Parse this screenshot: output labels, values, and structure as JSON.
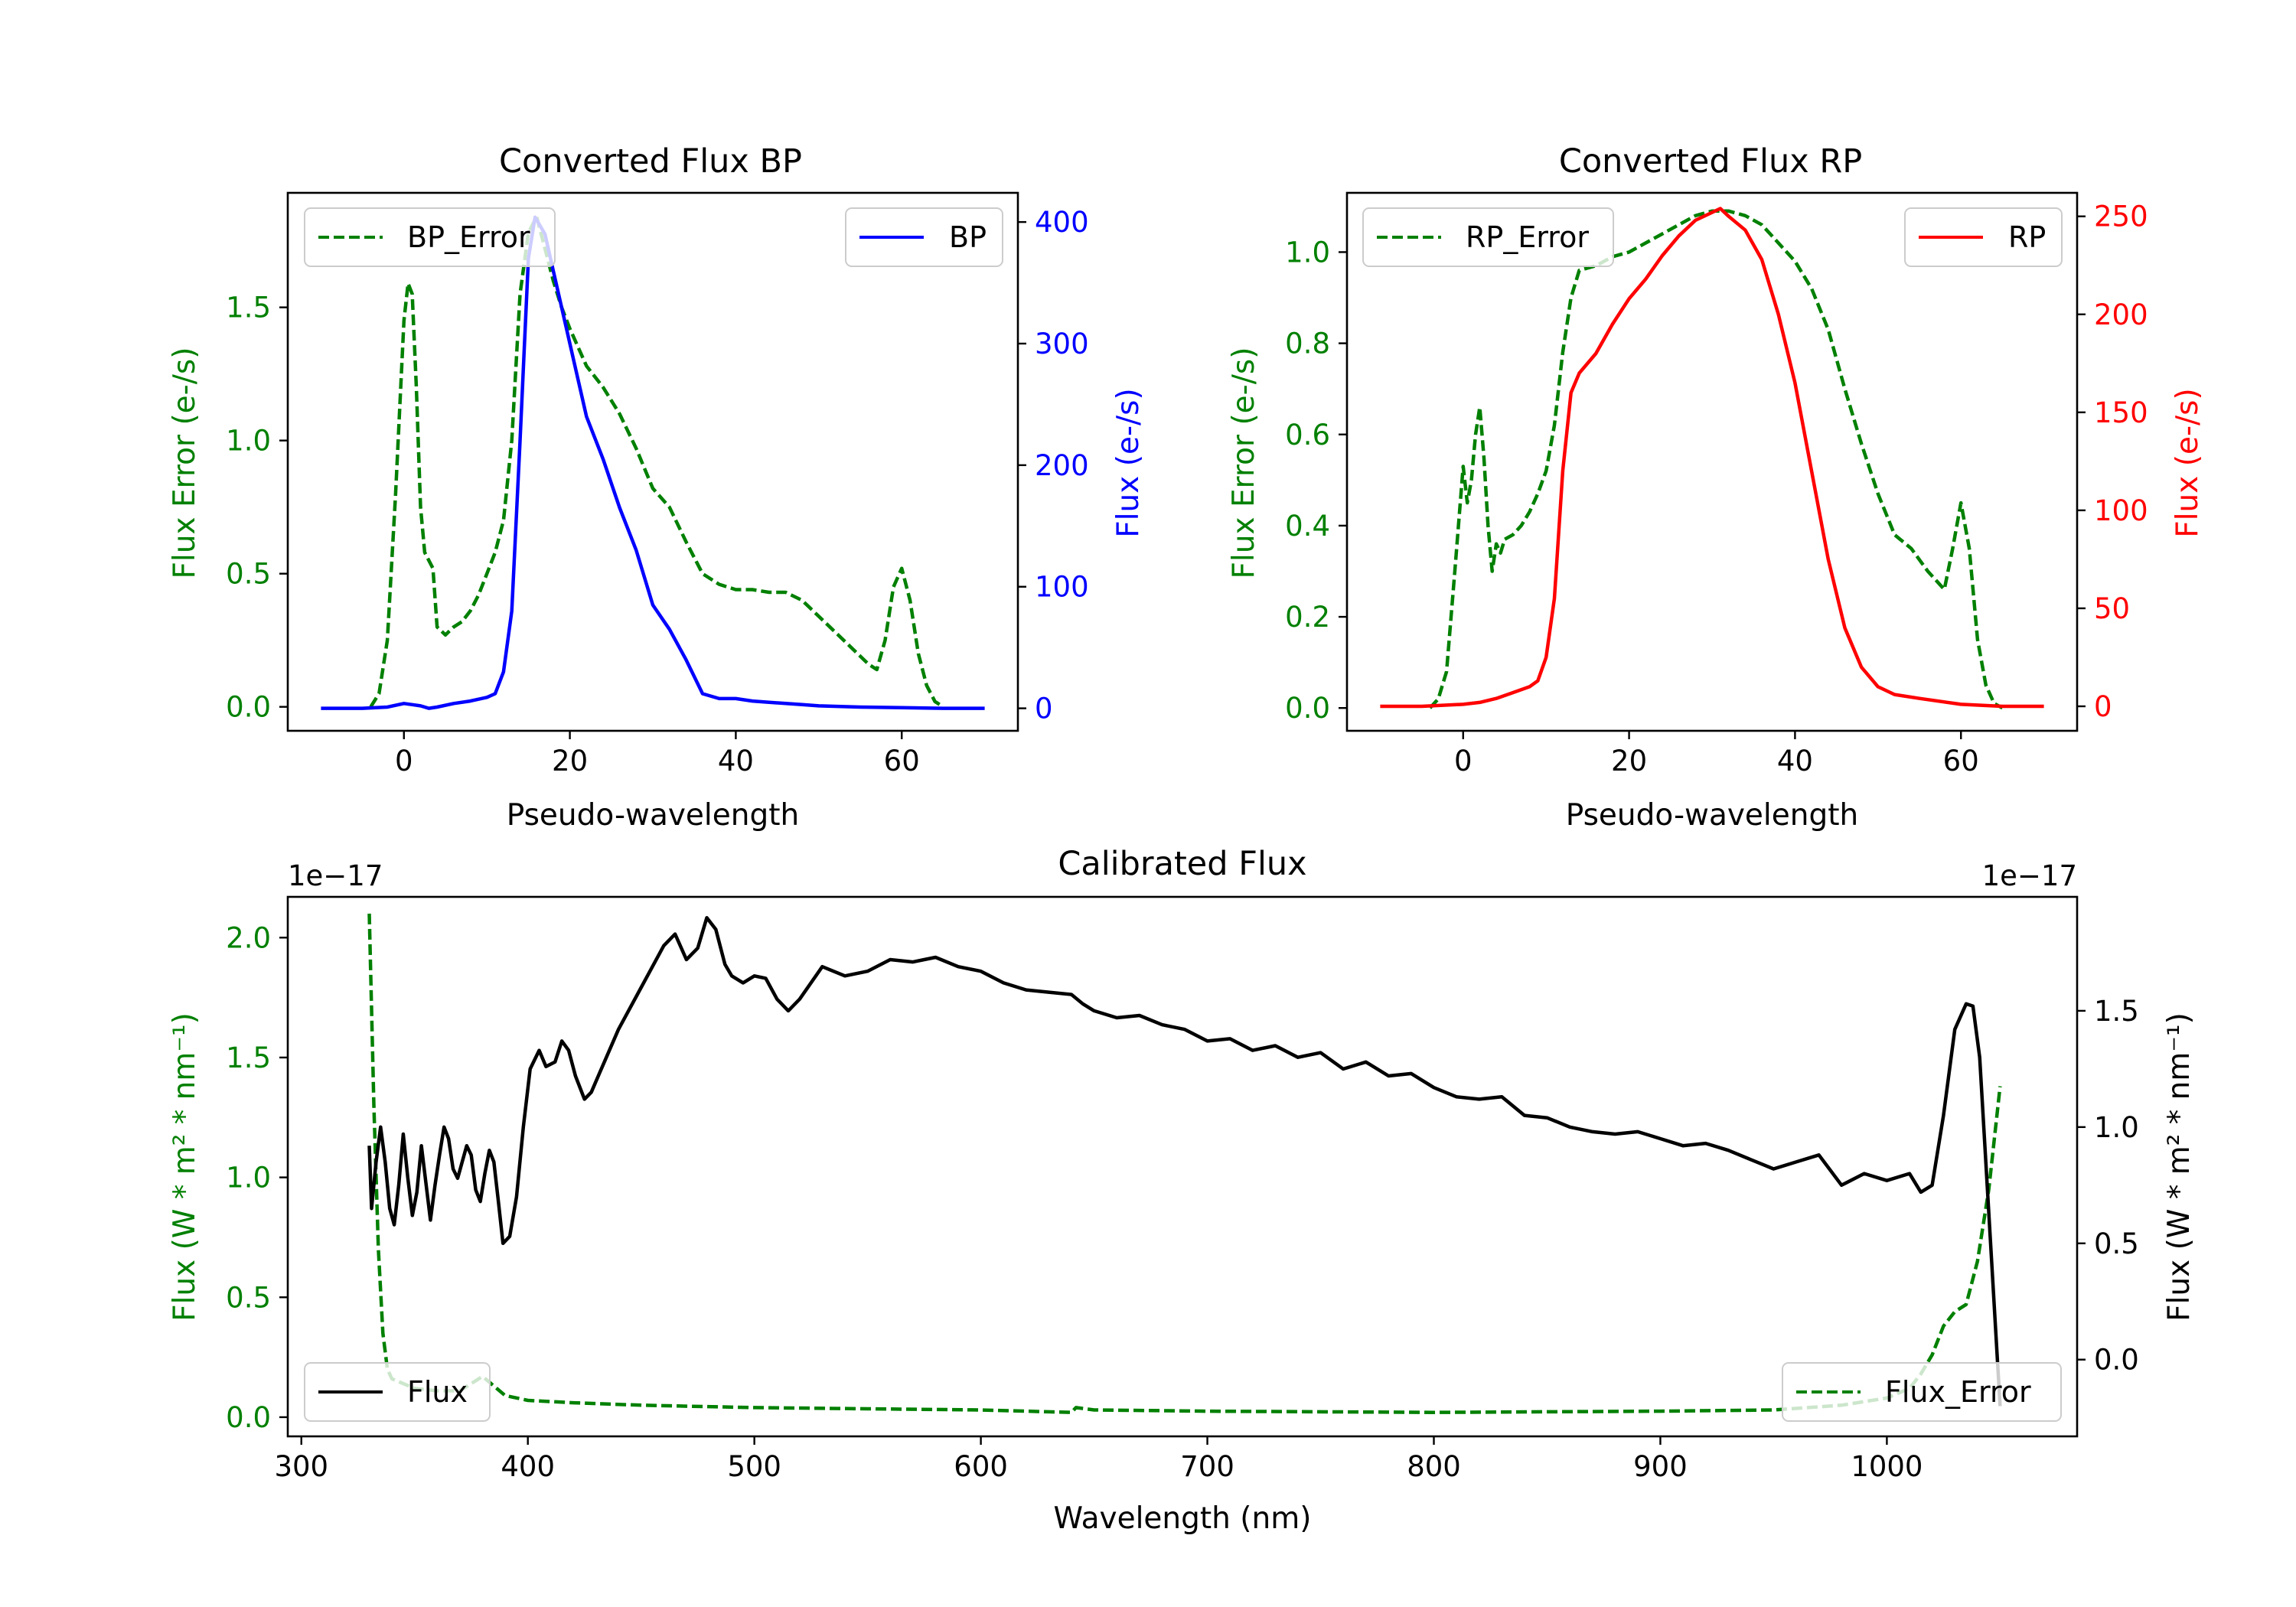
{
  "chart_data": [
    {
      "type": "line",
      "title": "Converted Flux BP",
      "xlabel": "Pseudo-wavelength",
      "ylabel_left": "Flux Error (e-/s)",
      "ylabel_right": "Flux (e-/s)",
      "xlim": [
        -14,
        74
      ],
      "ylim_left": [
        -0.09,
        1.93
      ],
      "ylim_right": [
        -18.5,
        424
      ],
      "xticks": [
        "0",
        "20",
        "40",
        "60"
      ],
      "yticks_left": [
        "0.0",
        "0.5",
        "1.0",
        "1.5"
      ],
      "yticks_right": [
        "0",
        "100",
        "200",
        "300",
        "400"
      ],
      "left_color": "#008000",
      "right_color": "#0000ff",
      "series": [
        {
          "name": "BP_Error",
          "axis": "left",
          "style": "dashed",
          "color": "#008000",
          "x": [
            -4,
            -3,
            -2,
            -1,
            0,
            0.5,
            1,
            1.5,
            2,
            2.5,
            3,
            3.5,
            4,
            5,
            6,
            7,
            8,
            9,
            10,
            11,
            12,
            13,
            14,
            15,
            16,
            17,
            18,
            19,
            20,
            22,
            24,
            26,
            28,
            30,
            32,
            34,
            36,
            38,
            40,
            42,
            44,
            46,
            48,
            50,
            52,
            54,
            56,
            57,
            58,
            59,
            60,
            61,
            62,
            63,
            64,
            65
          ],
          "values": [
            0.0,
            0.05,
            0.25,
            0.8,
            1.45,
            1.59,
            1.55,
            1.2,
            0.75,
            0.58,
            0.55,
            0.52,
            0.3,
            0.27,
            0.3,
            0.32,
            0.36,
            0.42,
            0.5,
            0.58,
            0.7,
            1.0,
            1.55,
            1.78,
            1.84,
            1.72,
            1.6,
            1.5,
            1.42,
            1.28,
            1.2,
            1.1,
            0.97,
            0.82,
            0.75,
            0.62,
            0.5,
            0.46,
            0.44,
            0.44,
            0.43,
            0.43,
            0.4,
            0.34,
            0.28,
            0.22,
            0.16,
            0.14,
            0.25,
            0.45,
            0.52,
            0.4,
            0.2,
            0.08,
            0.02,
            0.0
          ]
        },
        {
          "name": "BP",
          "axis": "right",
          "style": "solid",
          "color": "#0000ff",
          "x": [
            -10,
            -5,
            -2,
            0,
            1,
            2,
            3,
            4,
            6,
            8,
            10,
            11,
            12,
            13,
            14,
            15,
            15.8,
            17,
            18,
            20,
            22,
            24,
            26,
            28,
            30,
            32,
            34,
            36,
            38,
            40,
            42,
            44,
            46,
            48,
            50,
            55,
            60,
            65,
            70
          ],
          "values": [
            0,
            0,
            1,
            4,
            3,
            2,
            0,
            1,
            4,
            6,
            9,
            12,
            30,
            80,
            220,
            370,
            404,
            390,
            360,
            300,
            240,
            205,
            165,
            130,
            85,
            65,
            40,
            12,
            8,
            8,
            6,
            5,
            4,
            3,
            2,
            1,
            0.5,
            0,
            0
          ]
        }
      ],
      "legend": [
        {
          "label": "BP_Error",
          "position": "upper-left"
        },
        {
          "label": "BP",
          "position": "upper-right"
        }
      ]
    },
    {
      "type": "line",
      "title": "Converted Flux RP",
      "xlabel": "Pseudo-wavelength",
      "ylabel_left": "Flux Error (e-/s)",
      "ylabel_right": "Flux (e-/s)",
      "xlim": [
        -14,
        74
      ],
      "ylim_left": [
        -0.05,
        1.13
      ],
      "ylim_right": [
        -12.5,
        262
      ],
      "xticks": [
        "0",
        "20",
        "40",
        "60"
      ],
      "yticks_left": [
        "0.0",
        "0.2",
        "0.4",
        "0.6",
        "0.8",
        "1.0"
      ],
      "yticks_right": [
        "0",
        "50",
        "100",
        "150",
        "200",
        "250"
      ],
      "left_color": "#008000",
      "right_color": "#ff0000",
      "series": [
        {
          "name": "RP_Error",
          "axis": "left",
          "style": "dashed",
          "color": "#008000",
          "x": [
            -4,
            -3,
            -2,
            -1,
            0,
            0.5,
            1,
            1.5,
            2,
            2.5,
            3,
            3.5,
            4,
            4.5,
            5,
            6,
            7,
            8,
            9,
            10,
            11,
            12,
            13,
            14,
            16,
            18,
            20,
            22,
            24,
            26,
            28,
            30,
            32,
            34,
            36,
            38,
            40,
            42,
            44,
            46,
            48,
            50,
            52,
            54,
            56,
            57,
            58,
            59,
            60,
            61,
            62,
            63,
            64,
            65
          ],
          "values": [
            0.0,
            0.02,
            0.08,
            0.3,
            0.53,
            0.45,
            0.5,
            0.6,
            0.66,
            0.55,
            0.4,
            0.3,
            0.36,
            0.34,
            0.37,
            0.38,
            0.4,
            0.43,
            0.47,
            0.52,
            0.62,
            0.78,
            0.9,
            0.96,
            0.97,
            0.99,
            1.0,
            1.02,
            1.04,
            1.06,
            1.08,
            1.09,
            1.09,
            1.08,
            1.06,
            1.02,
            0.98,
            0.92,
            0.83,
            0.7,
            0.58,
            0.47,
            0.38,
            0.35,
            0.3,
            0.28,
            0.26,
            0.35,
            0.45,
            0.35,
            0.15,
            0.05,
            0.01,
            0.0
          ]
        },
        {
          "name": "RP",
          "axis": "right",
          "style": "solid",
          "color": "#ff0000",
          "x": [
            -10,
            -5,
            0,
            2,
            4,
            6,
            8,
            9,
            10,
            11,
            12,
            13,
            14,
            16,
            18,
            20,
            22,
            24,
            26,
            28,
            30,
            31,
            32,
            34,
            36,
            38,
            40,
            42,
            44,
            46,
            48,
            50,
            52,
            55,
            60,
            65,
            70
          ],
          "values": [
            0,
            0,
            1,
            2,
            4,
            7,
            10,
            13,
            25,
            55,
            120,
            160,
            170,
            180,
            195,
            208,
            218,
            230,
            240,
            248,
            252,
            254,
            250,
            243,
            228,
            200,
            165,
            120,
            75,
            40,
            20,
            10,
            6,
            4,
            1,
            0,
            0
          ]
        }
      ],
      "legend": [
        {
          "label": "RP_Error",
          "position": "upper-left"
        },
        {
          "label": "RP",
          "position": "upper-right"
        }
      ]
    },
    {
      "type": "line",
      "title": "Calibrated Flux",
      "xlabel": "Wavelength (nm)",
      "ylabel_left": "Flux (W * m² * nm⁻¹)",
      "ylabel_right": "Flux (W * m² * nm⁻¹)",
      "offset_left": "1e−17",
      "offset_right": "1e−17",
      "xlim": [
        294,
        1084
      ],
      "ylim_left": [
        -0.08,
        2.17
      ],
      "ylim_right": [
        -0.33,
        1.99
      ],
      "xticks": [
        "300",
        "400",
        "500",
        "600",
        "700",
        "800",
        "900",
        "1000"
      ],
      "yticks_left": [
        "0.0",
        "0.5",
        "1.0",
        "1.5",
        "2.0"
      ],
      "yticks_right": [
        "0.0",
        "0.5",
        "1.0",
        "1.5"
      ],
      "left_color": "#008000",
      "right_color": "#000000",
      "series": [
        {
          "name": "Flux_Error",
          "axis": "left",
          "style": "dashed",
          "color": "#008000",
          "x": [
            330,
            332,
            334,
            336,
            338,
            340,
            345,
            350,
            360,
            370,
            380,
            385,
            390,
            400,
            420,
            450,
            500,
            550,
            600,
            640,
            642,
            650,
            700,
            800,
            900,
            950,
            980,
            1000,
            1010,
            1015,
            1020,
            1025,
            1030,
            1035,
            1040,
            1045,
            1050
          ],
          "values": [
            2.1,
            1.3,
            0.7,
            0.35,
            0.2,
            0.16,
            0.14,
            0.12,
            0.11,
            0.11,
            0.17,
            0.13,
            0.09,
            0.07,
            0.06,
            0.05,
            0.04,
            0.035,
            0.03,
            0.02,
            0.04,
            0.03,
            0.025,
            0.02,
            0.025,
            0.03,
            0.05,
            0.08,
            0.12,
            0.18,
            0.26,
            0.38,
            0.44,
            0.47,
            0.65,
            0.95,
            1.38
          ]
        },
        {
          "name": "Flux",
          "axis": "right",
          "style": "solid",
          "color": "#000000",
          "x": [
            330,
            331,
            333,
            335,
            337,
            339,
            341,
            343,
            345,
            347,
            349,
            351,
            353,
            355,
            357,
            359,
            361,
            363,
            365,
            367,
            369,
            371,
            373,
            375,
            377,
            379,
            381,
            383,
            385,
            387,
            389,
            392,
            395,
            398,
            401,
            405,
            408,
            412,
            415,
            418,
            421,
            425,
            428,
            432,
            440,
            450,
            460,
            465,
            470,
            475,
            479,
            483,
            487,
            490,
            495,
            500,
            505,
            510,
            515,
            520,
            530,
            540,
            550,
            560,
            570,
            575,
            580,
            590,
            600,
            610,
            620,
            630,
            640,
            645,
            650,
            660,
            670,
            680,
            690,
            700,
            710,
            720,
            730,
            740,
            750,
            760,
            770,
            780,
            790,
            800,
            810,
            820,
            830,
            840,
            850,
            860,
            870,
            880,
            890,
            900,
            910,
            920,
            930,
            940,
            950,
            960,
            970,
            980,
            990,
            1000,
            1010,
            1015,
            1020,
            1025,
            1030,
            1035,
            1038,
            1041,
            1044,
            1047,
            1050
          ],
          "values": [
            0.92,
            0.65,
            0.85,
            1.0,
            0.85,
            0.65,
            0.58,
            0.75,
            0.97,
            0.78,
            0.62,
            0.72,
            0.92,
            0.76,
            0.6,
            0.75,
            0.88,
            1.0,
            0.95,
            0.82,
            0.78,
            0.85,
            0.92,
            0.88,
            0.73,
            0.68,
            0.8,
            0.9,
            0.85,
            0.68,
            0.5,
            0.53,
            0.7,
            1.0,
            1.25,
            1.33,
            1.26,
            1.28,
            1.37,
            1.33,
            1.22,
            1.12,
            1.15,
            1.24,
            1.42,
            1.6,
            1.78,
            1.83,
            1.72,
            1.77,
            1.9,
            1.85,
            1.7,
            1.65,
            1.62,
            1.65,
            1.64,
            1.55,
            1.5,
            1.55,
            1.69,
            1.65,
            1.67,
            1.72,
            1.71,
            1.72,
            1.73,
            1.69,
            1.67,
            1.62,
            1.59,
            1.58,
            1.57,
            1.53,
            1.5,
            1.47,
            1.48,
            1.44,
            1.42,
            1.37,
            1.38,
            1.33,
            1.35,
            1.3,
            1.32,
            1.25,
            1.28,
            1.22,
            1.23,
            1.17,
            1.13,
            1.12,
            1.13,
            1.05,
            1.04,
            1.0,
            0.98,
            0.97,
            0.98,
            0.95,
            0.92,
            0.93,
            0.9,
            0.86,
            0.82,
            0.85,
            0.88,
            0.75,
            0.8,
            0.77,
            0.8,
            0.72,
            0.75,
            1.05,
            1.42,
            1.53,
            1.52,
            1.3,
            0.8,
            0.3,
            -0.2
          ]
        }
      ],
      "legend": [
        {
          "label": "Flux",
          "position": "lower-left"
        },
        {
          "label": "Flux_Error",
          "position": "lower-right"
        }
      ]
    }
  ]
}
